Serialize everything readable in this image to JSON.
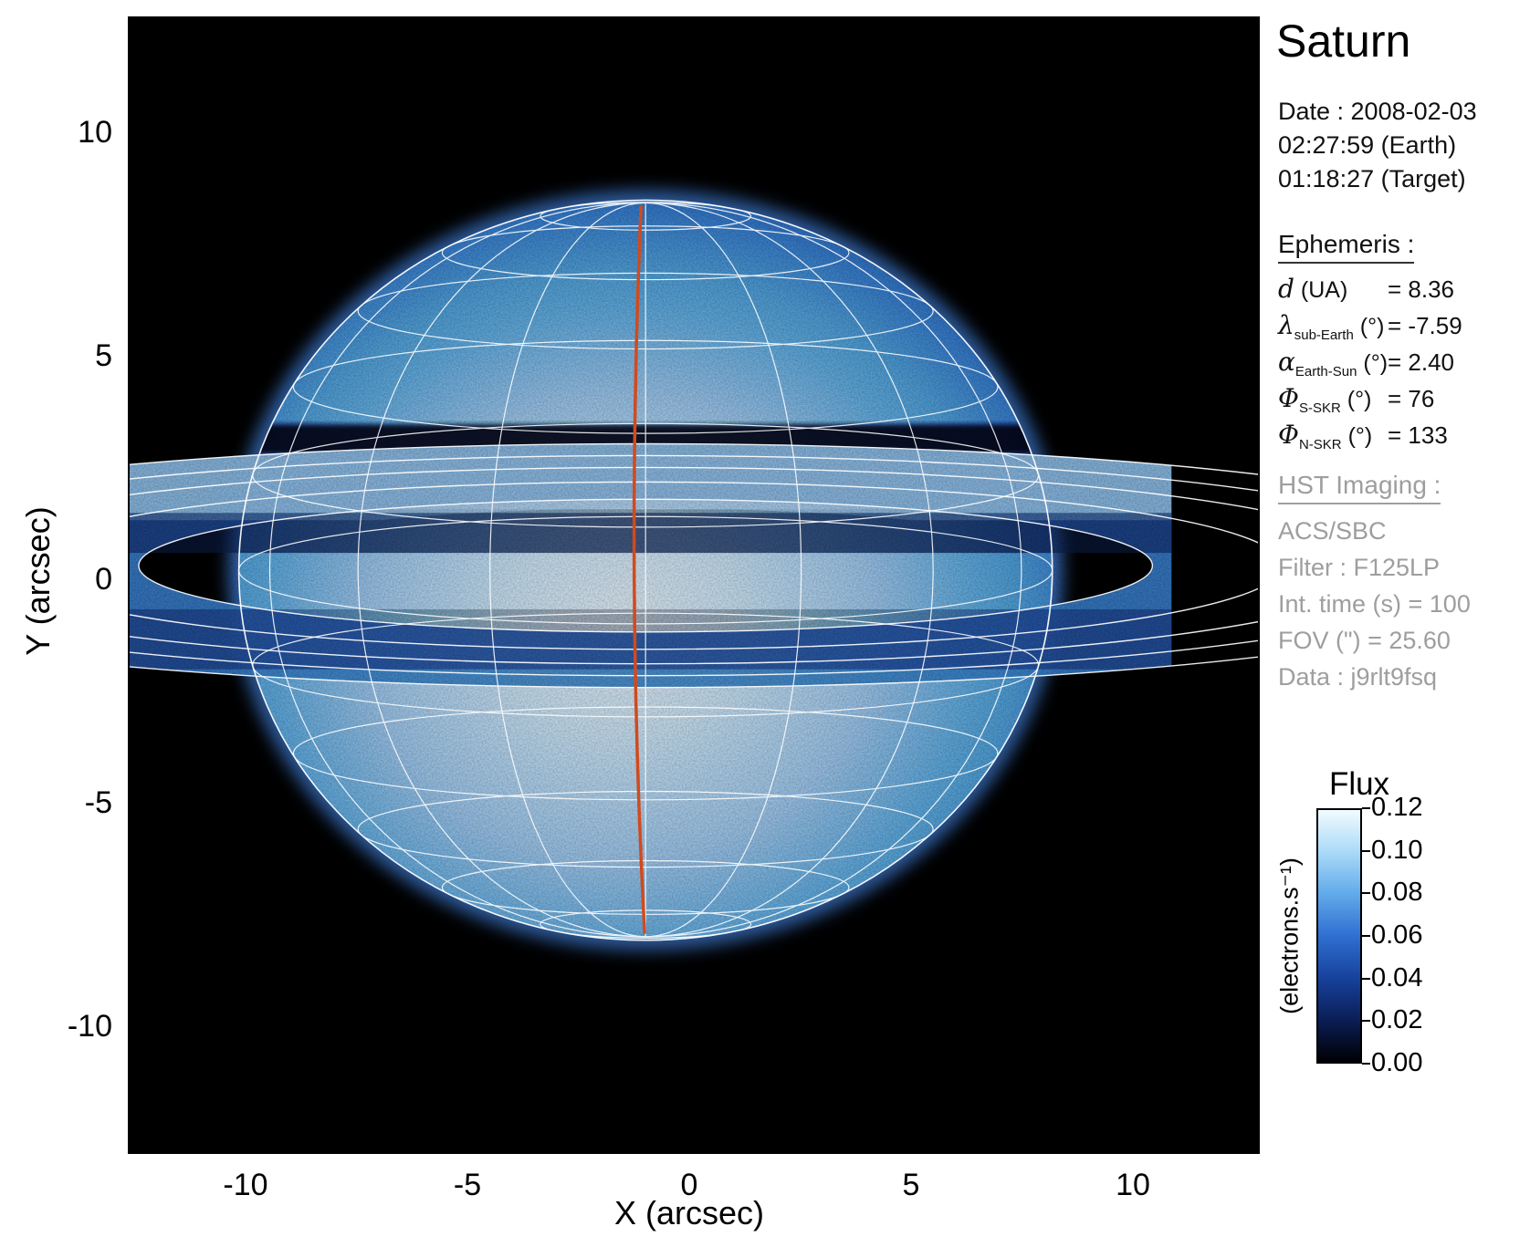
{
  "title": "Saturn",
  "info": {
    "date_label": "Date : 2008-02-03",
    "earth_time": "02:27:59 (Earth)",
    "target_time": "01:18:27 (Target)",
    "ephemeris_heading": "Ephemeris :",
    "ephemeris": [
      {
        "symbol": "d",
        "subscript": "",
        "unit": "(UA)",
        "value": "= 8.36"
      },
      {
        "symbol": "λ",
        "subscript": "sub-Earth",
        "unit": "(°)",
        "value": "= -7.59"
      },
      {
        "symbol": "α",
        "subscript": "Earth-Sun",
        "unit": "(°)",
        "value": "= 2.40"
      },
      {
        "symbol": "Φ",
        "subscript": "S-SKR",
        "unit": "(°)",
        "value": "= 76"
      },
      {
        "symbol": "Φ",
        "subscript": "N-SKR",
        "unit": "(°)",
        "value": "= 133"
      }
    ],
    "hst_heading": "HST Imaging :",
    "hst_lines": [
      "ACS/SBC",
      "Filter : F125LP",
      "Int. time (s) = 100",
      "FOV (\") = 25.60",
      "Data : j9rlt9fsq"
    ]
  },
  "colorbar": {
    "title": "Flux",
    "unit": "(electrons.s⁻¹)",
    "max": 0.12,
    "ticks": [
      {
        "value": 0.12,
        "label": "0.12"
      },
      {
        "value": 0.1,
        "label": "0.10"
      },
      {
        "value": 0.08,
        "label": "0.08"
      },
      {
        "value": 0.06,
        "label": "0.06"
      },
      {
        "value": 0.04,
        "label": "0.04"
      },
      {
        "value": 0.02,
        "label": "0.02"
      },
      {
        "value": 0.0,
        "label": "0.00"
      }
    ],
    "gradient_stops": [
      {
        "value": 0.0,
        "color": "#000003"
      },
      {
        "value": 0.02,
        "color": "#0b1e55"
      },
      {
        "value": 0.04,
        "color": "#17429d"
      },
      {
        "value": 0.06,
        "color": "#2f6fd0"
      },
      {
        "value": 0.08,
        "color": "#61aaea"
      },
      {
        "value": 0.1,
        "color": "#aadaf8"
      },
      {
        "value": 0.12,
        "color": "#f2fbff"
      }
    ]
  },
  "chart_data": {
    "type": "heatmap",
    "title": "Saturn",
    "xlabel": "X (arcsec)",
    "ylabel": "Y (arcsec)",
    "xlim": [
      -12.7,
      12.9
    ],
    "ylim": [
      -12.8,
      12.6
    ],
    "x_ticks": [
      {
        "value": -10,
        "label": "-10"
      },
      {
        "value": -5,
        "label": "-5"
      },
      {
        "value": 0,
        "label": "0"
      },
      {
        "value": 5,
        "label": "5"
      },
      {
        "value": 10,
        "label": "10"
      }
    ],
    "y_ticks": [
      {
        "value": 10,
        "label": "10"
      },
      {
        "value": 5,
        "label": "5"
      },
      {
        "value": 0,
        "label": "0"
      },
      {
        "value": -5,
        "label": "-5"
      },
      {
        "value": -10,
        "label": "-10"
      }
    ],
    "grid": false,
    "legend": "none",
    "flux_range": [
      0.0,
      0.12
    ],
    "flux_units": "electrons.s⁻¹",
    "colors": {
      "background": "#000000",
      "grid_overlay": "#ffffff",
      "meridian_line": "#d14a1e",
      "disc_bright": "#eefaff",
      "disc_dark": "#0c2458"
    },
    "image_content": "Saturn disc rendered in a blue flux colormap with nearly edge-on rings; white planetographic latitude-longitude grid and ring model contours overlaid; red central-meridian line; dark ring shadow band across the upper disc; ring data cut off at the right detector edge"
  }
}
